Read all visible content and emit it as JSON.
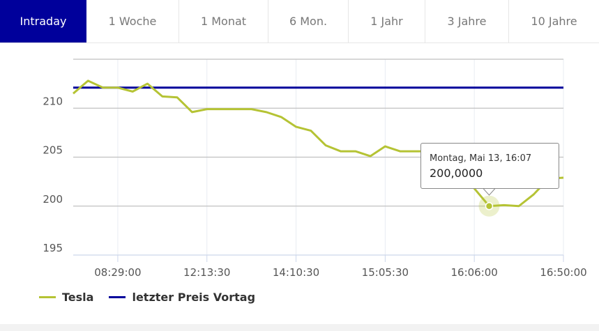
{
  "tabs": [
    {
      "label": "Intraday",
      "active": true
    },
    {
      "label": "1 Woche"
    },
    {
      "label": "1 Monat"
    },
    {
      "label": "6 Mon."
    },
    {
      "label": "1 Jahr"
    },
    {
      "label": "3 Jahre"
    },
    {
      "label": "10 Jahre"
    }
  ],
  "chart_data": {
    "type": "line",
    "title": "",
    "xlabel": "",
    "ylabel": "",
    "ylim": [
      195,
      215
    ],
    "yticks": [
      195,
      200,
      205,
      210
    ],
    "x_tick_labels": [
      {
        "index": 3,
        "label": "08:29:00"
      },
      {
        "index": 9,
        "label": "12:13:30"
      },
      {
        "index": 15,
        "label": "14:10:30"
      },
      {
        "index": 21,
        "label": "15:05:30"
      },
      {
        "index": 27,
        "label": "16:06:00"
      },
      {
        "index": 33,
        "label": "16:50:00"
      }
    ],
    "series": [
      {
        "name": "Tesla",
        "color": "#b5c334",
        "values": [
          211.5,
          212.8,
          212.1,
          212.1,
          211.7,
          212.5,
          211.2,
          211.1,
          209.6,
          209.9,
          209.9,
          209.9,
          209.9,
          209.6,
          209.1,
          208.1,
          207.7,
          206.2,
          205.6,
          205.6,
          205.1,
          206.1,
          205.6,
          205.6,
          205.6,
          205.5,
          204.5,
          201.8,
          200.0,
          200.1,
          200.0,
          201.2,
          202.8,
          202.9
        ]
      },
      {
        "name": "letzter Preis Vortag",
        "color": "#00009b",
        "constant": 212.1
      }
    ],
    "legend": "bottom-left",
    "tooltip": {
      "index": 28,
      "date": "Montag, Mai 13, 16:07",
      "value": "200,0000"
    }
  }
}
